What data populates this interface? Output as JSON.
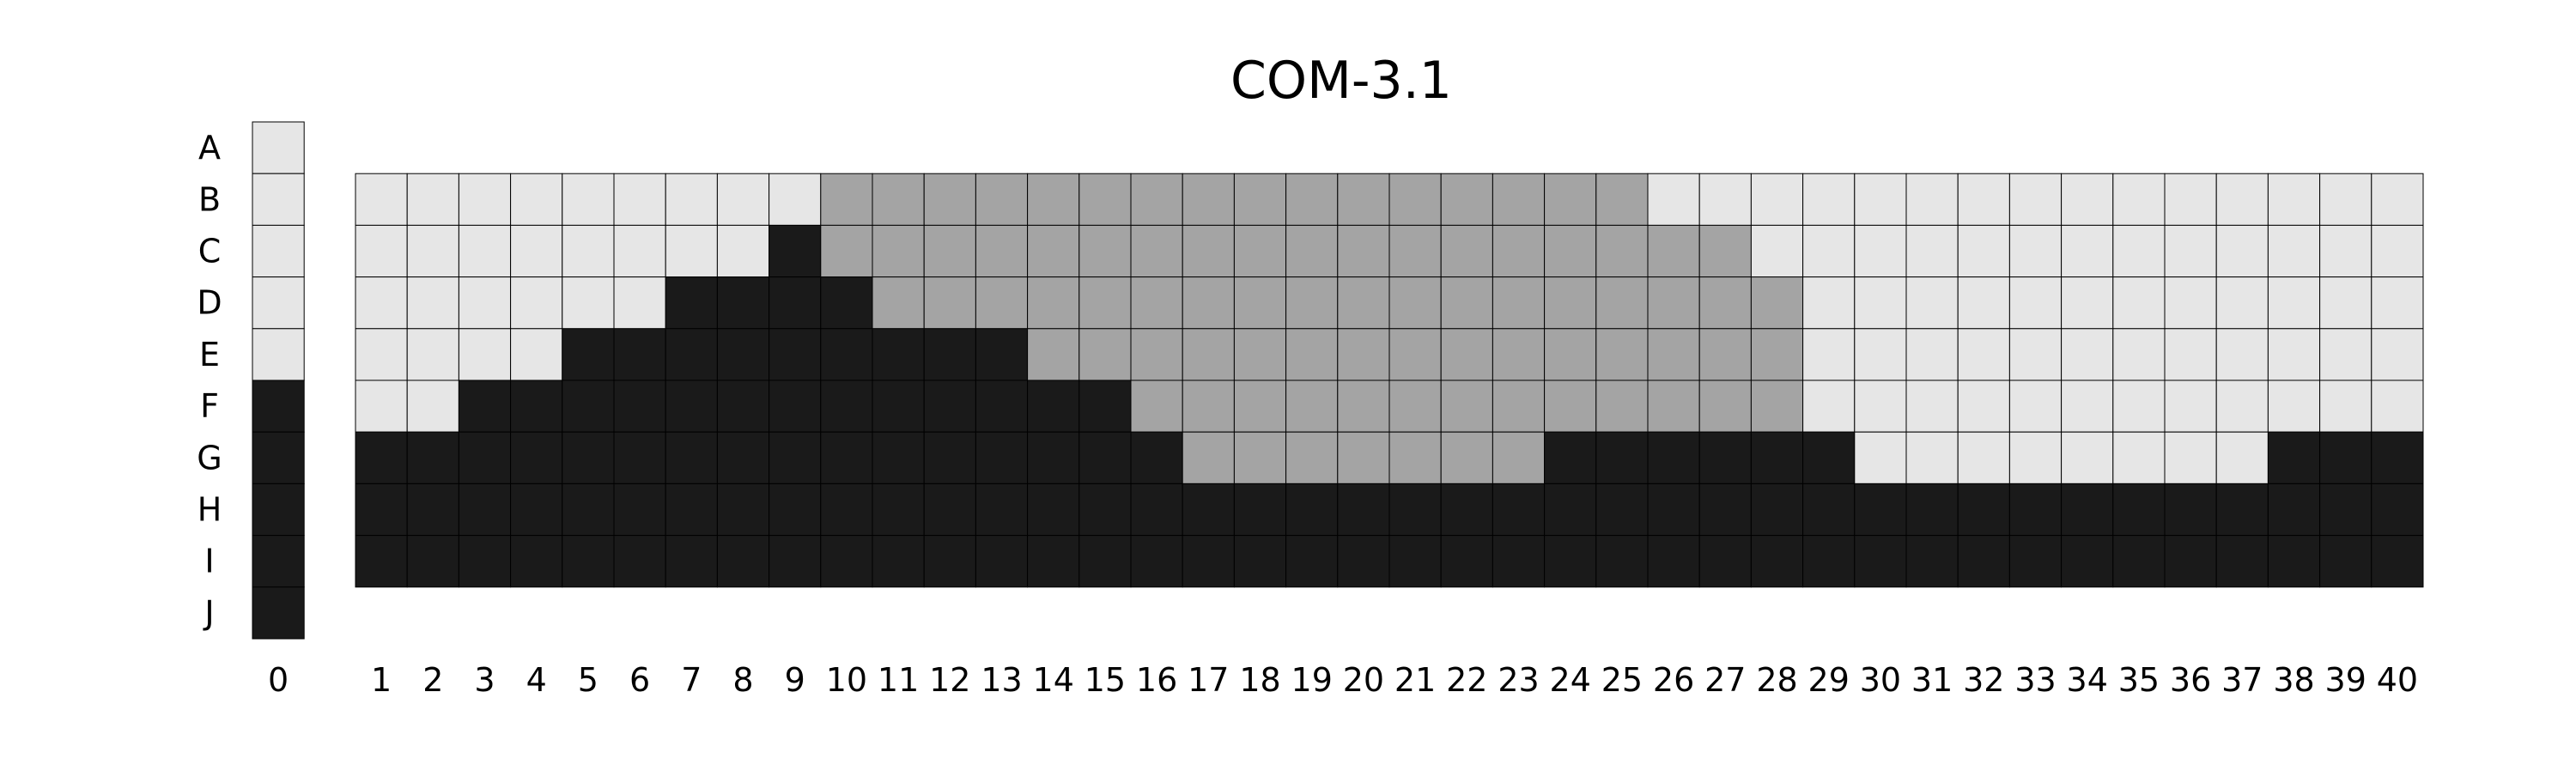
{
  "title": "COM-3.1",
  "colors": {
    "light": "#e6e6e6",
    "gray": "#a4a4a4",
    "black": "#1a1a1a",
    "border": "#000000"
  },
  "chart_data": {
    "type": "heatmap",
    "title": "COM-3.1",
    "row_labels": [
      "A",
      "B",
      "C",
      "D",
      "E",
      "F",
      "G",
      "H",
      "I",
      "J"
    ],
    "col_labels": [
      "0",
      "1",
      "2",
      "3",
      "4",
      "5",
      "6",
      "7",
      "8",
      "9",
      "10",
      "11",
      "12",
      "13",
      "14",
      "15",
      "16",
      "17",
      "18",
      "19",
      "20",
      "21",
      "22",
      "23",
      "24",
      "25",
      "26",
      "27",
      "28",
      "29",
      "30",
      "31",
      "32",
      "33",
      "34",
      "35",
      "36",
      "37",
      "38",
      "39",
      "40"
    ],
    "legend": "none",
    "grid": true,
    "key_column": {
      "column": "0",
      "rows": [
        "A",
        "B",
        "C",
        "D",
        "E",
        "F",
        "G",
        "H",
        "I",
        "J"
      ],
      "values": [
        "light",
        "light",
        "light",
        "light",
        "light",
        "black",
        "black",
        "black",
        "black",
        "black"
      ]
    },
    "main_grid": {
      "columns": "1-40",
      "rows": [
        "B",
        "C",
        "D",
        "E",
        "F",
        "G",
        "H",
        "I"
      ],
      "values": [
        [
          "light",
          "light",
          "light",
          "light",
          "light",
          "light",
          "light",
          "light",
          "light",
          "gray",
          "gray",
          "gray",
          "gray",
          "gray",
          "gray",
          "gray",
          "gray",
          "gray",
          "gray",
          "gray",
          "gray",
          "gray",
          "gray",
          "gray",
          "gray",
          "light",
          "light",
          "light",
          "light",
          "light",
          "light",
          "light",
          "light",
          "light",
          "light",
          "light",
          "light",
          "light",
          "light",
          "light"
        ],
        [
          "light",
          "light",
          "light",
          "light",
          "light",
          "light",
          "light",
          "light",
          "black",
          "gray",
          "gray",
          "gray",
          "gray",
          "gray",
          "gray",
          "gray",
          "gray",
          "gray",
          "gray",
          "gray",
          "gray",
          "gray",
          "gray",
          "gray",
          "gray",
          "gray",
          "gray",
          "light",
          "light",
          "light",
          "light",
          "light",
          "light",
          "light",
          "light",
          "light",
          "light",
          "light",
          "light",
          "light"
        ],
        [
          "light",
          "light",
          "light",
          "light",
          "light",
          "light",
          "black",
          "black",
          "black",
          "black",
          "gray",
          "gray",
          "gray",
          "gray",
          "gray",
          "gray",
          "gray",
          "gray",
          "gray",
          "gray",
          "gray",
          "gray",
          "gray",
          "gray",
          "gray",
          "gray",
          "gray",
          "gray",
          "light",
          "light",
          "light",
          "light",
          "light",
          "light",
          "light",
          "light",
          "light",
          "light",
          "light",
          "light"
        ],
        [
          "light",
          "light",
          "light",
          "light",
          "black",
          "black",
          "black",
          "black",
          "black",
          "black",
          "black",
          "black",
          "black",
          "gray",
          "gray",
          "gray",
          "gray",
          "gray",
          "gray",
          "gray",
          "gray",
          "gray",
          "gray",
          "gray",
          "gray",
          "gray",
          "gray",
          "gray",
          "light",
          "light",
          "light",
          "light",
          "light",
          "light",
          "light",
          "light",
          "light",
          "light",
          "light",
          "light"
        ],
        [
          "light",
          "light",
          "black",
          "black",
          "black",
          "black",
          "black",
          "black",
          "black",
          "black",
          "black",
          "black",
          "black",
          "black",
          "black",
          "gray",
          "gray",
          "gray",
          "gray",
          "gray",
          "gray",
          "gray",
          "gray",
          "gray",
          "gray",
          "gray",
          "gray",
          "gray",
          "light",
          "light",
          "light",
          "light",
          "light",
          "light",
          "light",
          "light",
          "light",
          "light",
          "light",
          "light"
        ],
        [
          "black",
          "black",
          "black",
          "black",
          "black",
          "black",
          "black",
          "black",
          "black",
          "black",
          "black",
          "black",
          "black",
          "black",
          "black",
          "black",
          "gray",
          "gray",
          "gray",
          "gray",
          "gray",
          "gray",
          "gray",
          "black",
          "black",
          "black",
          "black",
          "black",
          "black",
          "light",
          "light",
          "light",
          "light",
          "light",
          "light",
          "light",
          "light",
          "black",
          "black",
          "black"
        ],
        [
          "black",
          "black",
          "black",
          "black",
          "black",
          "black",
          "black",
          "black",
          "black",
          "black",
          "black",
          "black",
          "black",
          "black",
          "black",
          "black",
          "black",
          "black",
          "black",
          "black",
          "black",
          "black",
          "black",
          "black",
          "black",
          "black",
          "black",
          "black",
          "black",
          "black",
          "black",
          "black",
          "black",
          "black",
          "black",
          "black",
          "black",
          "black",
          "black",
          "black"
        ],
        [
          "black",
          "black",
          "black",
          "black",
          "black",
          "black",
          "black",
          "black",
          "black",
          "black",
          "black",
          "black",
          "black",
          "black",
          "black",
          "black",
          "black",
          "black",
          "black",
          "black",
          "black",
          "black",
          "black",
          "black",
          "black",
          "black",
          "black",
          "black",
          "black",
          "black",
          "black",
          "black",
          "black",
          "black",
          "black",
          "black",
          "black",
          "black",
          "black",
          "black"
        ]
      ]
    }
  }
}
